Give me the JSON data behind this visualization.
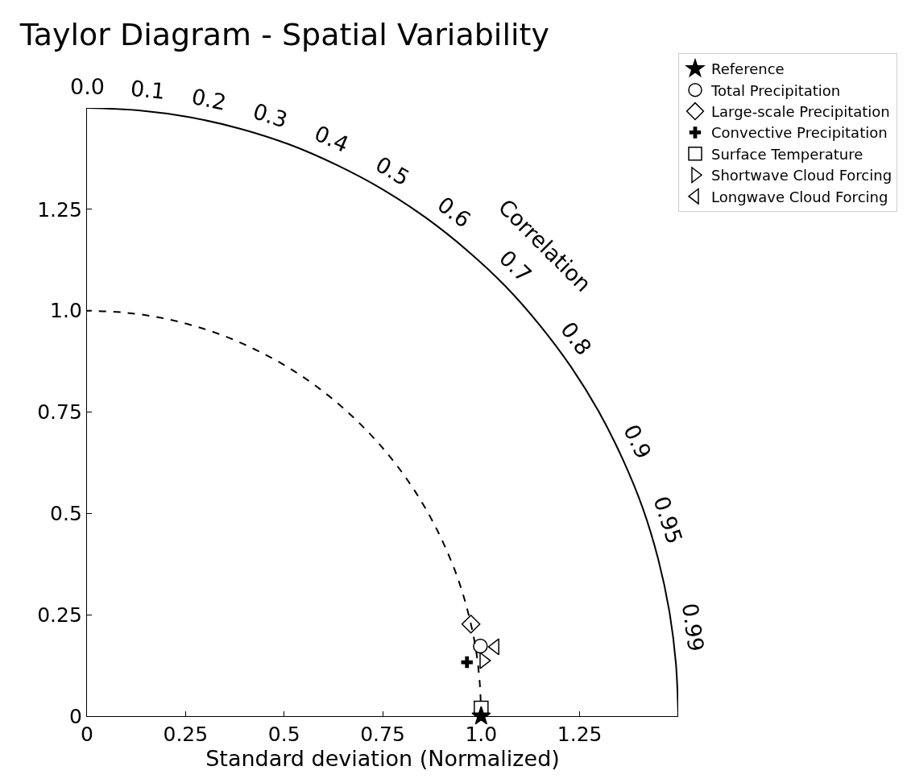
{
  "chart_data": {
    "type": "scatter",
    "title": "Taylor Diagram - Spatial Variability",
    "xlabel": "Standard deviation (Normalized)",
    "xlim": [
      0,
      1.5
    ],
    "ylim": [
      0,
      1.5
    ],
    "xticks": [
      0,
      0.25,
      0.5,
      0.75,
      {
        "value": 1.0,
        "label": "1.0"
      },
      1.25
    ],
    "yticks": [
      0,
      0.25,
      0.5,
      0.75,
      {
        "value": 1.0,
        "label": "1.0"
      },
      1.25
    ],
    "grid": false,
    "legend": "top right",
    "annotations": [
      "0.0",
      "0.1",
      "0.2",
      "0.3",
      "0.4",
      "0.5",
      "0.6",
      "0.7",
      "0.8",
      "0.9",
      "0.95",
      "0.99",
      "Correlation"
    ],
    "series": [
      {
        "name": "Reference",
        "color": "#000000",
        "marker": "star",
        "x": [
          1.0
        ],
        "values": [
          0.0
        ]
      },
      {
        "name": "Total Precipitation",
        "color": "#000000",
        "marker": "circle",
        "x": [
          0.998
        ],
        "values": [
          0.173
        ]
      },
      {
        "name": "Large-scale Precipitation",
        "color": "#000000",
        "marker": "diamond",
        "x": [
          0.974
        ],
        "values": [
          0.227
        ]
      },
      {
        "name": "Convective Precipitation",
        "color": "#000000",
        "marker": "cross",
        "x": [
          0.964
        ],
        "values": [
          0.133
        ]
      },
      {
        "name": "Surface Temperature",
        "color": "#000000",
        "marker": "square",
        "x": [
          1.0
        ],
        "values": [
          0.02
        ]
      },
      {
        "name": "Shortwave Cloud Forcing",
        "color": "#000000",
        "marker": "triangle-right",
        "x": [
          1.006
        ],
        "values": [
          0.137
        ]
      },
      {
        "name": "Longwave Cloud Forcing",
        "color": "#000000",
        "marker": "triangle-left",
        "x": [
          1.036
        ],
        "values": [
          0.171
        ]
      },
      {
        "type": "line",
        "color": "#000000",
        "line_style": "solid",
        "marker": "none",
        "x": [
          1.5,
          1.494,
          1.477,
          1.449,
          1.41,
          1.359,
          1.299,
          1.229,
          1.149,
          1.061,
          0.964,
          0.86,
          0.75,
          0.634,
          0.513,
          0.388,
          0.261,
          0.131,
          0.0
        ],
        "values": [
          0.0,
          0.131,
          0.261,
          0.388,
          0.513,
          0.634,
          0.75,
          0.86,
          0.964,
          1.061,
          1.149,
          1.229,
          1.299,
          1.359,
          1.41,
          1.449,
          1.477,
          1.494,
          1.5
        ]
      },
      {
        "type": "line",
        "color": "#000000",
        "line_style": "dashed",
        "marker": "none",
        "x": [
          1.0,
          0.996,
          0.985,
          0.966,
          0.94,
          0.906,
          0.866,
          0.819,
          0.766,
          0.707,
          0.643,
          0.574,
          0.5,
          0.423,
          0.342,
          0.259,
          0.174,
          0.087,
          0.0
        ],
        "values": [
          0.0,
          0.087,
          0.174,
          0.259,
          0.342,
          0.423,
          0.5,
          0.574,
          0.643,
          0.707,
          0.766,
          0.819,
          0.866,
          0.906,
          0.94,
          0.966,
          0.985,
          0.996,
          1.0
        ]
      }
    ]
  }
}
